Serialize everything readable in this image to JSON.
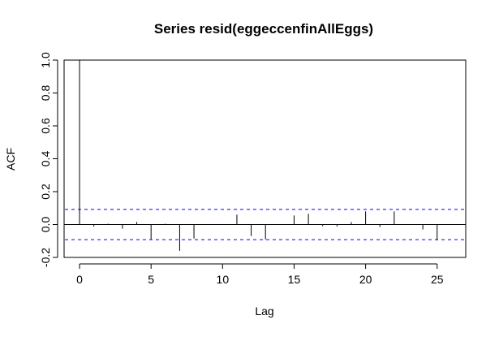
{
  "chart_data": {
    "type": "bar",
    "title": "Series  resid(eggeccenfinAllEggs)",
    "xlabel": "Lag",
    "ylabel": "ACF",
    "xlim": [
      -1.08,
      27.0
    ],
    "ylim": [
      -0.2,
      1.0
    ],
    "x_ticks": [
      0,
      5,
      10,
      15,
      20,
      25
    ],
    "y_ticks": [
      -0.2,
      0.0,
      0.2,
      0.4,
      0.6,
      0.8,
      1.0
    ],
    "grid": false,
    "legend": "none",
    "confidence_bound": 0.092,
    "confidence_color": "#0000ff",
    "bar_color": "#000000",
    "lags": [
      0,
      1,
      2,
      3,
      4,
      5,
      6,
      7,
      8,
      9,
      10,
      11,
      12,
      13,
      14,
      15,
      16,
      17,
      18,
      19,
      20,
      21,
      22,
      23,
      24,
      25
    ],
    "values": [
      1.0,
      -0.012,
      0.005,
      -0.025,
      0.015,
      -0.09,
      0.005,
      -0.16,
      -0.085,
      0.0,
      0.0,
      0.06,
      -0.07,
      -0.09,
      0.0,
      0.055,
      0.065,
      -0.01,
      -0.012,
      0.015,
      0.08,
      -0.015,
      0.08,
      0.0,
      -0.03,
      -0.095
    ]
  }
}
